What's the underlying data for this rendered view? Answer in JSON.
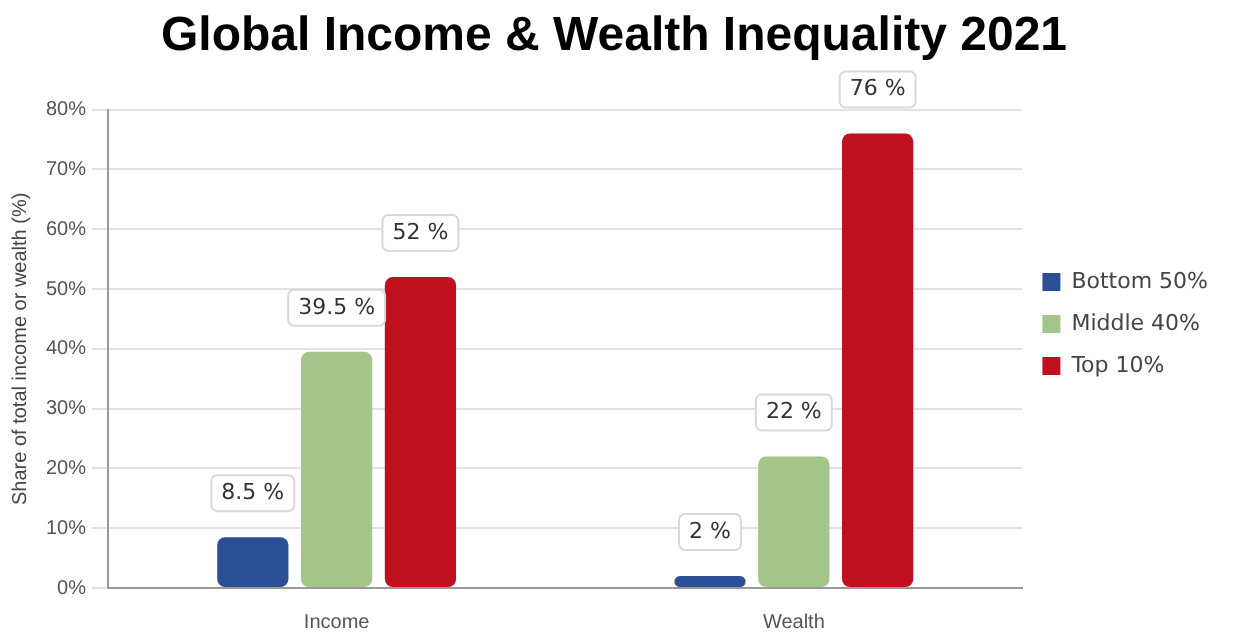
{
  "chart_data": {
    "type": "bar",
    "title": "Global Income & Wealth Inequality 2021",
    "ylabel": "Share of total income or wealth (%)",
    "categories": [
      "Income",
      "Wealth"
    ],
    "series": [
      {
        "name": "Bottom 50%",
        "color": "#2b4f96",
        "values": [
          8.5,
          2
        ],
        "value_labels": [
          "8.5 %",
          "2 %"
        ]
      },
      {
        "name": "Middle 40%",
        "color": "#a3c58a",
        "values": [
          39.5,
          22
        ],
        "value_labels": [
          "39.5 %",
          "22 %"
        ]
      },
      {
        "name": "Top 10%",
        "color": "#c00f1e",
        "values": [
          52,
          76
        ],
        "value_labels": [
          "52 %",
          "76 %"
        ]
      }
    ],
    "ylim": [
      0,
      80
    ],
    "yticks": [
      {
        "value": 0,
        "label": "0%"
      },
      {
        "value": 10,
        "label": "10%"
      },
      {
        "value": 20,
        "label": "20%"
      },
      {
        "value": 30,
        "label": "30%"
      },
      {
        "value": 40,
        "label": "40%"
      },
      {
        "value": 50,
        "label": "50%"
      },
      {
        "value": 60,
        "label": "60%"
      },
      {
        "value": 70,
        "label": "70%"
      },
      {
        "value": 80,
        "label": "80%"
      }
    ],
    "grid": "y",
    "legend": "right"
  }
}
